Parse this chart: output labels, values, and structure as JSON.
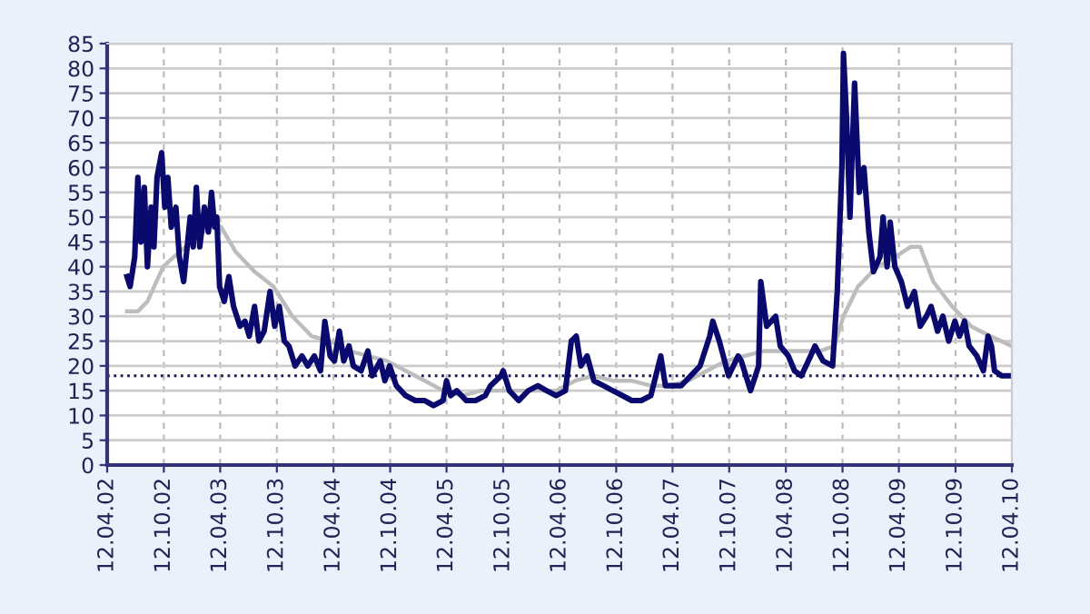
{
  "chart_data": {
    "type": "line",
    "xlim": [
      "2002-04-12",
      "2010-04-12"
    ],
    "xticks": [
      {
        "value": "2002-04-12",
        "label": "12.04.02"
      },
      {
        "value": "2002-10-12",
        "label": "12.10.02"
      },
      {
        "value": "2003-04-12",
        "label": "12.04.03"
      },
      {
        "value": "2003-10-12",
        "label": "12.10.03"
      },
      {
        "value": "2004-04-12",
        "label": "12.04.04"
      },
      {
        "value": "2004-10-12",
        "label": "12.10.04"
      },
      {
        "value": "2005-04-12",
        "label": "12.04.05"
      },
      {
        "value": "2005-10-12",
        "label": "12.10.05"
      },
      {
        "value": "2006-04-12",
        "label": "12.04.06"
      },
      {
        "value": "2006-10-12",
        "label": "12.10.06"
      },
      {
        "value": "2007-04-12",
        "label": "12.04.07"
      },
      {
        "value": "2007-10-12",
        "label": "12.10.07"
      },
      {
        "value": "2008-04-12",
        "label": "12.04.08"
      },
      {
        "value": "2008-10-12",
        "label": "12.10.08"
      },
      {
        "value": "2009-04-12",
        "label": "12.04.09"
      },
      {
        "value": "2009-10-12",
        "label": "12.10.09"
      },
      {
        "value": "2010-04-12",
        "label": "12.04.10"
      }
    ],
    "ylim": [
      0,
      85
    ],
    "yticks": [
      0,
      5,
      10,
      15,
      20,
      25,
      30,
      35,
      40,
      45,
      50,
      55,
      60,
      65,
      70,
      75,
      80,
      85
    ],
    "grid": true,
    "ref_lines": [
      {
        "axis": "y",
        "value": 18,
        "color": "#1a1a5a",
        "line_style": "dotted"
      }
    ],
    "series": [
      {
        "color": "#bdbdbd",
        "x": [
          "2002-06-15",
          "2002-07-20",
          "2002-08-20",
          "2002-10-10",
          "2002-12-01",
          "2003-02-01",
          "2003-03-20",
          "2003-04-15",
          "2003-06-01",
          "2003-08-01",
          "2003-10-01",
          "2003-12-01",
          "2004-02-01",
          "2004-04-01",
          "2004-06-01",
          "2004-08-01",
          "2004-10-01",
          "2004-12-01",
          "2005-02-01",
          "2005-04-01",
          "2005-06-01",
          "2005-08-01",
          "2005-10-01",
          "2005-12-01",
          "2006-02-01",
          "2006-04-01",
          "2006-06-01",
          "2006-08-01",
          "2006-10-01",
          "2006-12-01",
          "2007-02-01",
          "2007-04-01",
          "2007-06-01",
          "2007-08-01",
          "2007-10-01",
          "2007-12-01",
          "2008-02-01",
          "2008-04-01",
          "2008-06-01",
          "2008-08-01",
          "2008-09-15",
          "2008-10-15",
          "2008-12-01",
          "2009-02-01",
          "2009-04-01",
          "2009-05-20",
          "2009-06-20",
          "2009-08-01",
          "2009-10-01",
          "2009-12-01",
          "2010-02-01",
          "2010-04-12"
        ],
        "values": [
          31,
          31,
          33,
          40,
          43,
          46,
          49,
          48,
          43,
          39,
          36,
          30,
          26,
          25,
          23,
          22,
          21,
          19,
          17,
          15,
          14,
          15,
          15,
          15,
          15,
          15,
          17,
          18,
          17,
          17,
          16,
          16,
          17,
          19,
          21,
          22,
          23,
          23,
          23,
          23,
          24,
          30,
          36,
          40,
          42,
          44,
          44,
          37,
          32,
          28,
          26,
          24
        ]
      },
      {
        "color": "#0a0a6e",
        "x": [
          "2002-06-15",
          "2002-06-25",
          "2002-07-10",
          "2002-07-20",
          "2002-07-30",
          "2002-08-10",
          "2002-08-20",
          "2002-09-01",
          "2002-09-10",
          "2002-09-20",
          "2002-10-05",
          "2002-10-15",
          "2002-10-25",
          "2002-11-05",
          "2002-11-20",
          "2002-12-01",
          "2002-12-15",
          "2003-01-05",
          "2003-01-15",
          "2003-01-25",
          "2003-02-05",
          "2003-02-20",
          "2003-03-05",
          "2003-03-15",
          "2003-03-25",
          "2003-04-01",
          "2003-04-10",
          "2003-04-25",
          "2003-05-10",
          "2003-05-25",
          "2003-06-15",
          "2003-07-01",
          "2003-07-15",
          "2003-08-01",
          "2003-08-15",
          "2003-09-01",
          "2003-09-20",
          "2003-10-05",
          "2003-10-20",
          "2003-11-05",
          "2003-11-20",
          "2003-12-10",
          "2004-01-01",
          "2004-01-20",
          "2004-02-10",
          "2004-03-01",
          "2004-03-15",
          "2004-04-01",
          "2004-04-15",
          "2004-05-01",
          "2004-05-15",
          "2004-06-01",
          "2004-06-15",
          "2004-07-10",
          "2004-08-01",
          "2004-08-15",
          "2004-09-10",
          "2004-09-25",
          "2004-10-10",
          "2004-11-01",
          "2004-12-01",
          "2005-01-01",
          "2005-02-01",
          "2005-03-01",
          "2005-04-01",
          "2005-04-12",
          "2005-04-25",
          "2005-05-15",
          "2005-06-15",
          "2005-07-15",
          "2005-08-15",
          "2005-09-01",
          "2005-10-05",
          "2005-10-12",
          "2005-11-01",
          "2005-12-01",
          "2006-01-01",
          "2006-02-01",
          "2006-03-01",
          "2006-04-01",
          "2006-05-01",
          "2006-05-20",
          "2006-06-05",
          "2006-06-20",
          "2006-07-10",
          "2006-08-01",
          "2006-09-01",
          "2006-10-01",
          "2006-11-01",
          "2006-12-01",
          "2007-01-01",
          "2007-02-01",
          "2007-03-05",
          "2007-03-20",
          "2007-04-10",
          "2007-05-10",
          "2007-06-10",
          "2007-07-10",
          "2007-08-10",
          "2007-08-20",
          "2007-09-10",
          "2007-10-10",
          "2007-11-10",
          "2007-11-20",
          "2007-12-20",
          "2008-01-15",
          "2008-01-22",
          "2008-02-10",
          "2008-03-10",
          "2008-03-25",
          "2008-04-20",
          "2008-05-10",
          "2008-06-01",
          "2008-07-01",
          "2008-07-15",
          "2008-08-10",
          "2008-09-10",
          "2008-09-25",
          "2008-10-10",
          "2008-10-15",
          "2008-10-25",
          "2008-11-05",
          "2008-11-20",
          "2008-12-05",
          "2008-12-20",
          "2009-01-05",
          "2009-01-20",
          "2009-02-10",
          "2009-02-20",
          "2009-03-05",
          "2009-03-15",
          "2009-03-30",
          "2009-04-20",
          "2009-05-10",
          "2009-06-01",
          "2009-06-20",
          "2009-07-10",
          "2009-07-25",
          "2009-08-15",
          "2009-09-01",
          "2009-09-20",
          "2009-10-10",
          "2009-10-25",
          "2009-11-10",
          "2009-11-25",
          "2009-12-20",
          "2010-01-10",
          "2010-01-25",
          "2010-02-05",
          "2010-02-15",
          "2010-03-10",
          "2010-04-12"
        ],
        "values": [
          38,
          36,
          42,
          58,
          45,
          56,
          40,
          52,
          44,
          58,
          63,
          52,
          58,
          48,
          52,
          42,
          37,
          50,
          44,
          56,
          44,
          52,
          47,
          55,
          48,
          50,
          36,
          33,
          38,
          32,
          28,
          29,
          26,
          32,
          25,
          27,
          35,
          28,
          32,
          25,
          24,
          20,
          22,
          20,
          22,
          19,
          29,
          22,
          21,
          27,
          21,
          24,
          20,
          19,
          23,
          18,
          21,
          17,
          20,
          16,
          14,
          13,
          13,
          12,
          13,
          17,
          14,
          15,
          13,
          13,
          14,
          16,
          18,
          19,
          15,
          13,
          15,
          16,
          15,
          14,
          15,
          25,
          26,
          20,
          22,
          17,
          16,
          15,
          14,
          13,
          13,
          14,
          22,
          16,
          16,
          16,
          18,
          20,
          26,
          29,
          25,
          18,
          22,
          21,
          15,
          20,
          37,
          28,
          30,
          24,
          22,
          19,
          18,
          22,
          24,
          21,
          20,
          35,
          60,
          83,
          70,
          50,
          77,
          55,
          60,
          47,
          39,
          42,
          50,
          40,
          49,
          40,
          37,
          32,
          35,
          28,
          30,
          32,
          27,
          30,
          25,
          29,
          26,
          29,
          24,
          22,
          19,
          26,
          24,
          19,
          18,
          18
        ]
      }
    ]
  }
}
